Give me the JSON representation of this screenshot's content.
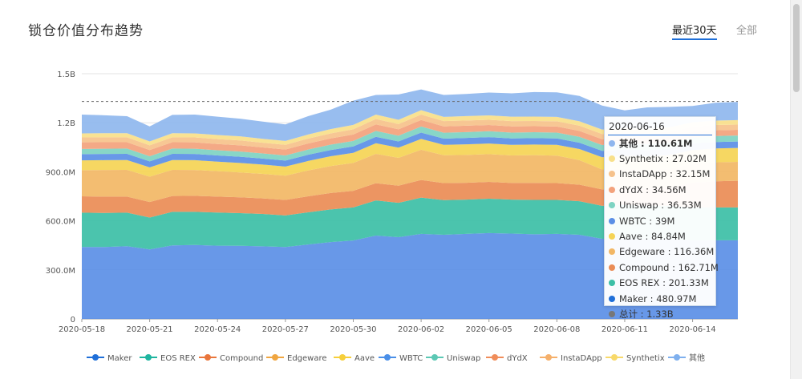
{
  "header": {
    "title": "锁仓价值分布趋势",
    "tabs": [
      {
        "label": "最近30天",
        "active": true
      },
      {
        "label": "全部",
        "active": false
      }
    ],
    "accent_color": "#1f6fd8"
  },
  "chart_data": {
    "type": "area",
    "stacked": true,
    "y_ticks": [
      "0",
      "300.0M",
      "600.0M",
      "900.0M",
      "1.2B",
      "1.5B"
    ],
    "ylim": [
      0,
      1500
    ],
    "y_units": "M",
    "x_tick_labels": [
      "2020-05-18",
      "2020-05-21",
      "2020-05-24",
      "2020-05-27",
      "2020-05-30",
      "2020-06-02",
      "2020-06-05",
      "2020-06-08",
      "2020-06-11",
      "2020-06-14"
    ],
    "x": [
      "2020-05-18",
      "2020-05-19",
      "2020-05-20",
      "2020-05-21",
      "2020-05-22",
      "2020-05-23",
      "2020-05-24",
      "2020-05-25",
      "2020-05-26",
      "2020-05-27",
      "2020-05-28",
      "2020-05-29",
      "2020-05-30",
      "2020-05-31",
      "2020-06-01",
      "2020-06-02",
      "2020-06-03",
      "2020-06-04",
      "2020-06-05",
      "2020-06-06",
      "2020-06-07",
      "2020-06-08",
      "2020-06-09",
      "2020-06-10",
      "2020-06-11",
      "2020-06-12",
      "2020-06-13",
      "2020-06-14",
      "2020-06-15",
      "2020-06-16"
    ],
    "series": [
      {
        "name": "Maker",
        "color": "#5b8fe6",
        "values": [
          440,
          440,
          445,
          425,
          450,
          452,
          448,
          447,
          444,
          440,
          455,
          470,
          480,
          510,
          500,
          520,
          515,
          520,
          525,
          522,
          518,
          520,
          515,
          490,
          492,
          488,
          490,
          480,
          481,
          481
        ]
      },
      {
        "name": "EOS REX",
        "color": "#3cbfa6",
        "values": [
          210,
          208,
          205,
          195,
          205,
          203,
          203,
          200,
          198,
          193,
          197,
          200,
          202,
          215,
          210,
          222,
          212,
          210,
          210,
          208,
          210,
          208,
          205,
          202,
          205,
          203,
          203,
          202,
          201,
          201
        ]
      },
      {
        "name": "Compound",
        "color": "#ea8c55",
        "values": [
          100,
          100,
          98,
          95,
          97,
          98,
          97,
          97,
          95,
          95,
          98,
          100,
          102,
          105,
          105,
          108,
          104,
          103,
          103,
          102,
          104,
          103,
          101,
          100,
          102,
          103,
          110,
          150,
          160,
          163
        ]
      },
      {
        "name": "Edgeware",
        "color": "#f2b765",
        "values": [
          160,
          163,
          164,
          155,
          160,
          158,
          156,
          152,
          150,
          148,
          158,
          165,
          170,
          180,
          170,
          185,
          170,
          170,
          170,
          168,
          170,
          168,
          150,
          122,
          120,
          118,
          117,
          117,
          116,
          116
        ]
      },
      {
        "name": "Aave",
        "color": "#f5d455",
        "values": [
          60,
          60,
          60,
          57,
          60,
          60,
          58,
          58,
          57,
          56,
          58,
          60,
          62,
          65,
          63,
          66,
          64,
          65,
          65,
          65,
          65,
          66,
          68,
          75,
          80,
          82,
          83,
          84,
          85,
          85
        ]
      },
      {
        "name": "WBTC",
        "color": "#5b8fe6",
        "values": [
          38,
          38,
          38,
          37,
          38,
          38,
          38,
          38,
          37,
          37,
          38,
          38,
          39,
          39,
          38,
          39,
          38,
          39,
          39,
          39,
          39,
          39,
          39,
          39,
          39,
          39,
          39,
          39,
          39,
          39
        ]
      },
      {
        "name": "Uniswap",
        "color": "#7ed3c2",
        "values": [
          32,
          32,
          32,
          31,
          32,
          32,
          32,
          32,
          31,
          31,
          32,
          33,
          34,
          36,
          35,
          37,
          36,
          36,
          36,
          36,
          36,
          36,
          36,
          36,
          36,
          36,
          37,
          37,
          37,
          37
        ]
      },
      {
        "name": "dYdX",
        "color": "#f3a27c",
        "values": [
          40,
          40,
          39,
          38,
          39,
          39,
          38,
          38,
          37,
          36,
          37,
          38,
          39,
          40,
          39,
          40,
          39,
          39,
          38,
          38,
          37,
          37,
          36,
          35,
          35,
          35,
          35,
          35,
          35,
          35
        ]
      },
      {
        "name": "InstaDApp",
        "color": "#f6c28b",
        "values": [
          30,
          30,
          30,
          29,
          30,
          30,
          30,
          30,
          29,
          29,
          30,
          31,
          32,
          33,
          32,
          33,
          32,
          32,
          32,
          32,
          32,
          32,
          32,
          32,
          32,
          32,
          32,
          32,
          32,
          32
        ]
      },
      {
        "name": "Synthetix",
        "color": "#f8e08a",
        "values": [
          25,
          25,
          25,
          24,
          25,
          25,
          25,
          25,
          24,
          24,
          25,
          26,
          27,
          27,
          26,
          27,
          26,
          27,
          27,
          27,
          27,
          27,
          27,
          27,
          27,
          27,
          27,
          27,
          27,
          27
        ]
      },
      {
        "name": "其他",
        "color": "#8fb7ee",
        "values": [
          115,
          110,
          104,
          92,
          112,
          115,
          112,
          108,
          105,
          101,
          112,
          119,
          148,
          120,
          155,
          127,
          134,
          135,
          140,
          143,
          150,
          150,
          155,
          147,
          108,
          131,
          124,
          100,
          109,
          111
        ]
      }
    ],
    "ref_line_value": 1330,
    "legend_position": "bottom",
    "tooltip": {
      "date": "2020-06-16",
      "rows": [
        {
          "label": "其他 : 110.61M",
          "color": "#8fb7ee",
          "bold": true
        },
        {
          "label": "Synthetix : 27.02M",
          "color": "#f8e08a",
          "bold": false
        },
        {
          "label": "InstaDApp : 32.15M",
          "color": "#f6c28b",
          "bold": false
        },
        {
          "label": "dYdX : 34.56M",
          "color": "#f3a27c",
          "bold": false
        },
        {
          "label": "Uniswap : 36.53M",
          "color": "#7ed3c2",
          "bold": false
        },
        {
          "label": "WBTC : 39M",
          "color": "#5b8fe6",
          "bold": false
        },
        {
          "label": "Aave : 84.84M",
          "color": "#f5d455",
          "bold": false
        },
        {
          "label": "Edgeware : 116.36M",
          "color": "#f2b765",
          "bold": false
        },
        {
          "label": "Compound : 162.71M",
          "color": "#ea8c55",
          "bold": false
        },
        {
          "label": "EOS REX : 201.33M",
          "color": "#3cbfa6",
          "bold": false
        },
        {
          "label": "Maker : 480.97M",
          "color": "#1f6fd8",
          "bold": false
        },
        {
          "label": "总计 : 1.33B",
          "color": "#777777",
          "bold": false
        }
      ]
    },
    "legend": [
      {
        "label": "Maker",
        "color": "#1f6fd8"
      },
      {
        "label": "EOS REX",
        "color": "#1fb5a0"
      },
      {
        "label": "Compound",
        "color": "#e9763c"
      },
      {
        "label": "Edgeware",
        "color": "#f0a641"
      },
      {
        "label": "Aave",
        "color": "#f6cf3b"
      },
      {
        "label": "WBTC",
        "color": "#4a8fe8"
      },
      {
        "label": "Uniswap",
        "color": "#5cc8b4"
      },
      {
        "label": "dYdX",
        "color": "#f08d5a"
      },
      {
        "label": "InstaDApp",
        "color": "#f5b06b"
      },
      {
        "label": "Synthetix",
        "color": "#f8d96a"
      },
      {
        "label": "其他",
        "color": "#7fb0ee"
      }
    ]
  }
}
